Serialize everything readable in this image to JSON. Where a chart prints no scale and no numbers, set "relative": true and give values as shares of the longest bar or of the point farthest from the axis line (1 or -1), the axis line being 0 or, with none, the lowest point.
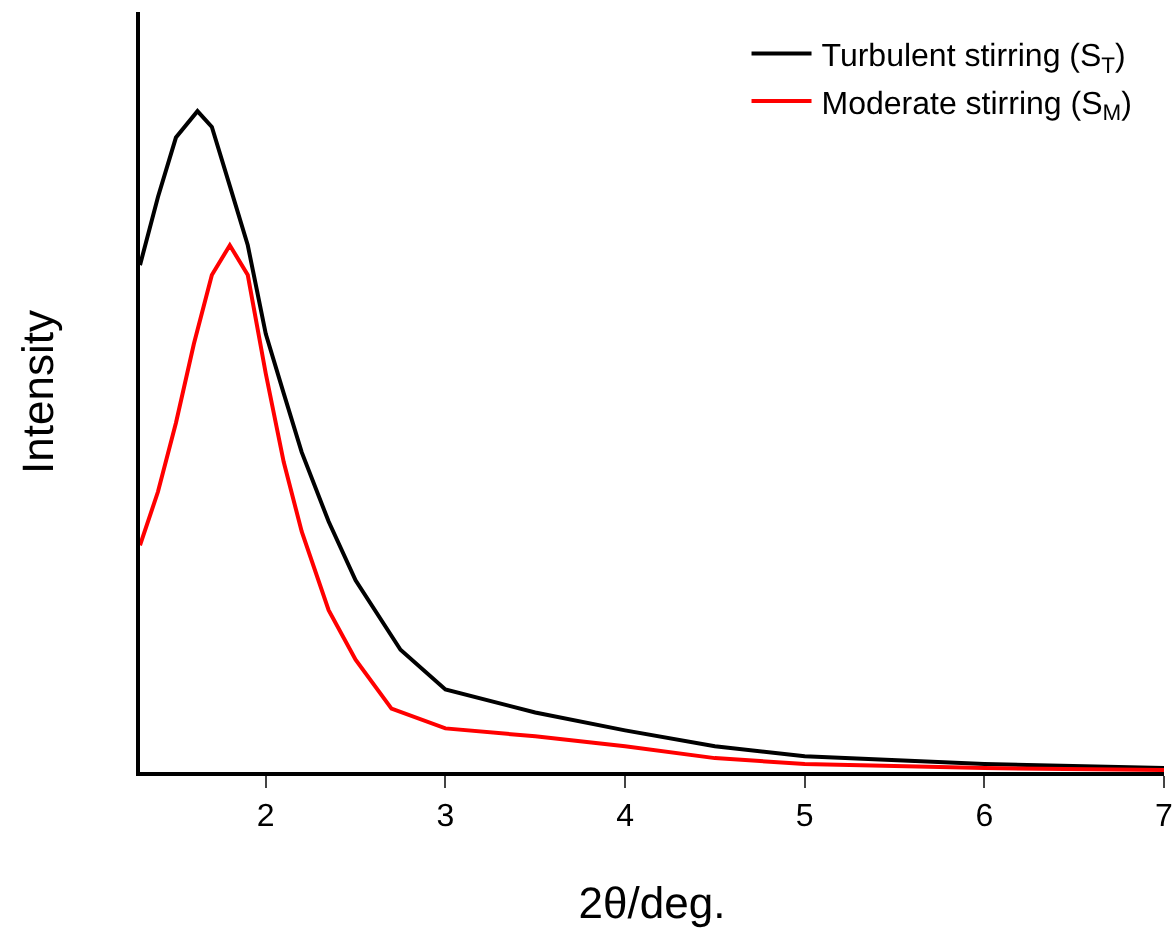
{
  "chart_data": {
    "type": "line",
    "relative": true,
    "xlabel": "2θ/deg.",
    "ylabel": "Intensity",
    "xlim": [
      1.3,
      7
    ],
    "xticks": [
      2,
      3,
      4,
      5,
      6,
      7
    ],
    "legend": "top right",
    "grid": false,
    "marker": "none",
    "line_style": "solid",
    "series": [
      {
        "name": "Turbulent stirring (S$_{T}$)",
        "color": "#000000",
        "x": [
          1.3,
          1.4,
          1.5,
          1.62,
          1.7,
          1.8,
          1.9,
          2.0,
          2.1,
          2.2,
          2.35,
          2.5,
          2.75,
          3.0,
          3.5,
          4.0,
          4.5,
          5.0,
          6.0,
          7.0
        ],
        "values": [
          0.767,
          0.87,
          0.96,
          1.0,
          0.976,
          0.887,
          0.797,
          0.663,
          0.573,
          0.484,
          0.379,
          0.29,
          0.185,
          0.125,
          0.09,
          0.063,
          0.039,
          0.024,
          0.012,
          0.006
        ]
      },
      {
        "name": "Moderate stirring (S$_{M}$)",
        "color": "#ff0000",
        "x": [
          1.3,
          1.4,
          1.5,
          1.6,
          1.7,
          1.8,
          1.9,
          2.0,
          2.1,
          2.2,
          2.35,
          2.5,
          2.7,
          3.0,
          3.5,
          4.0,
          4.5,
          5.0,
          6.0,
          7.0
        ],
        "values": [
          0.343,
          0.424,
          0.528,
          0.648,
          0.752,
          0.797,
          0.752,
          0.603,
          0.469,
          0.364,
          0.245,
          0.17,
          0.096,
          0.066,
          0.054,
          0.039,
          0.021,
          0.012,
          0.006,
          0.003
        ]
      }
    ]
  }
}
